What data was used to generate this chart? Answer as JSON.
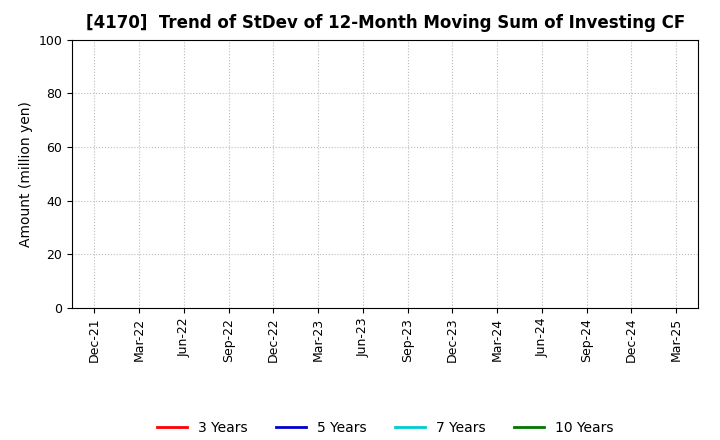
{
  "title": "[4170]  Trend of StDev of 12-Month Moving Sum of Investing CF",
  "ylabel": "Amount (million yen)",
  "ylim": [
    0,
    100
  ],
  "yticks": [
    0,
    20,
    40,
    60,
    80,
    100
  ],
  "x_tick_labels": [
    "Dec-21",
    "Mar-22",
    "Jun-22",
    "Sep-22",
    "Dec-22",
    "Mar-23",
    "Jun-23",
    "Sep-23",
    "Dec-23",
    "Mar-24",
    "Jun-24",
    "Sep-24",
    "Dec-24",
    "Mar-25"
  ],
  "background_color": "#ffffff",
  "grid_color": "#bbbbbb",
  "legend": [
    {
      "label": "3 Years",
      "color": "#ff0000"
    },
    {
      "label": "5 Years",
      "color": "#0000cc"
    },
    {
      "label": "7 Years",
      "color": "#00cccc"
    },
    {
      "label": "10 Years",
      "color": "#007700"
    }
  ],
  "title_fontsize": 12,
  "axis_label_fontsize": 10,
  "tick_fontsize": 9
}
